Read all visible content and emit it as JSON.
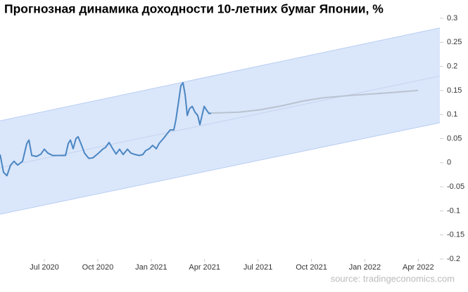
{
  "chart_data": {
    "type": "line",
    "title": "Прогнозная динамика доходности 10-летних бумаг Японии, %",
    "source": "source: tradingeconomics.com",
    "xlim": [
      2020.2925,
      2022.351
    ],
    "ylim": [
      -0.2,
      0.3
    ],
    "yticks": [
      0.3,
      0.25,
      0.2,
      0.15,
      0.1,
      0.05,
      0,
      -0.05,
      -0.1,
      -0.15,
      -0.2
    ],
    "xticks": [
      {
        "value": 2020.5,
        "label": "Jul 2020"
      },
      {
        "value": 2020.75,
        "label": "Oct 2020"
      },
      {
        "value": 2021,
        "label": "Jan 2021"
      },
      {
        "value": 2021.25,
        "label": "Apr 2021"
      },
      {
        "value": 2021.5,
        "label": "Jul 2021"
      },
      {
        "value": 2021.75,
        "label": "Oct 2021"
      },
      {
        "value": 2022,
        "label": "Jan 2022"
      },
      {
        "value": 2022.25,
        "label": "Apr 2022"
      }
    ],
    "grid": false,
    "band": {
      "color": "#dae6fa",
      "edge_color": "#b9cef3",
      "trend_color": "#c4d4ef",
      "x": [
        2020.2925,
        2022.351
      ],
      "upper": [
        0.087,
        0.28
      ],
      "lower": [
        -0.107,
        0.083
      ],
      "trend": [
        -0.01,
        0.18
      ]
    },
    "series": [
      {
        "color": "#4a86c2",
        "x": [
          2020.293,
          2020.309,
          2020.325,
          2020.342,
          2020.358,
          2020.375,
          2020.398,
          2020.418,
          2020.428,
          2020.441,
          2020.464,
          2020.484,
          2020.5,
          2020.516,
          2020.539,
          2020.572,
          2020.599,
          2020.612,
          2020.622,
          2020.635,
          2020.648,
          2020.658,
          2020.671,
          2020.688,
          2020.708,
          2020.727,
          2020.754,
          2020.773,
          2020.787,
          2020.803,
          2020.82,
          2020.836,
          2020.852,
          2020.869,
          2020.889,
          2020.905,
          2020.925,
          2020.945,
          2020.961,
          2020.974,
          2020.991,
          2021.007,
          2021.024,
          2021.037,
          2021.057,
          2021.076,
          2021.089,
          2021.106,
          2021.116,
          2021.126,
          2021.139,
          2021.149,
          2021.159,
          2021.169,
          2021.179,
          2021.192,
          2021.205,
          2021.218,
          2021.228,
          2021.238,
          2021.248,
          2021.261,
          2021.271,
          2021.281
        ],
        "values": [
          0.017,
          -0.02,
          -0.027,
          -0.005,
          0.003,
          -0.005,
          0.003,
          0.04,
          0.047,
          0.015,
          0.013,
          0.018,
          0.028,
          0.02,
          0.015,
          0.015,
          0.015,
          0.04,
          0.047,
          0.029,
          0.05,
          0.054,
          0.04,
          0.02,
          0.009,
          0.01,
          0.02,
          0.028,
          0.032,
          0.042,
          0.029,
          0.018,
          0.028,
          0.017,
          0.028,
          0.02,
          0.017,
          0.015,
          0.017,
          0.025,
          0.029,
          0.036,
          0.029,
          0.04,
          0.05,
          0.061,
          0.068,
          0.068,
          0.09,
          0.12,
          0.16,
          0.166,
          0.141,
          0.098,
          0.112,
          0.117,
          0.105,
          0.098,
          0.079,
          0.098,
          0.117,
          0.108,
          0.102,
          0.103
        ]
      },
      {
        "color": "#b9c3d0",
        "x": [
          2021.281,
          2021.412,
          2021.511,
          2021.61,
          2021.709,
          2021.808,
          2021.94,
          2022.104,
          2022.249
        ],
        "values": [
          0.103,
          0.105,
          0.11,
          0.118,
          0.128,
          0.135,
          0.14,
          0.145,
          0.15
        ]
      }
    ]
  }
}
